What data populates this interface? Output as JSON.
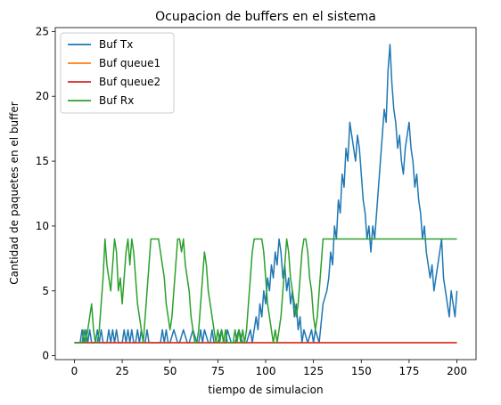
{
  "chart_data": {
    "type": "line",
    "title": "Ocupacion de buffers en el sistema",
    "xlabel": "tiempo de simulacion",
    "ylabel": "Cantidad de paquetes en el buffer",
    "xlim": [
      -10,
      210
    ],
    "ylim": [
      -0.3,
      25.3
    ],
    "xticks": [
      0,
      25,
      50,
      75,
      100,
      125,
      150,
      175,
      200
    ],
    "yticks": [
      0,
      5,
      10,
      15,
      20,
      25
    ],
    "grid": false,
    "legend_position": "top-left",
    "series": [
      {
        "name": "Buf Tx",
        "color": "#1f77b4",
        "x": [
          0,
          2,
          3,
          4,
          5,
          6,
          7,
          8,
          9,
          10,
          11,
          12,
          13,
          14,
          15,
          16,
          17,
          18,
          19,
          20,
          21,
          22,
          23,
          24,
          25,
          26,
          27,
          28,
          29,
          30,
          31,
          32,
          33,
          34,
          35,
          36,
          37,
          38,
          39,
          40,
          45,
          46,
          47,
          48,
          49,
          50,
          52,
          54,
          55,
          57,
          59,
          60,
          62,
          64,
          65,
          66,
          67,
          68,
          70,
          71,
          72,
          73,
          75,
          77,
          78,
          79,
          80,
          82,
          84,
          86,
          88,
          90,
          92,
          93,
          94,
          95,
          96,
          97,
          98,
          99,
          100,
          101,
          102,
          103,
          104,
          105,
          106,
          107,
          108,
          109,
          110,
          111,
          112,
          113,
          114,
          115,
          116,
          117,
          118,
          119,
          120,
          122,
          124,
          125,
          126,
          128,
          130,
          132,
          133,
          134,
          135,
          136,
          137,
          138,
          139,
          140,
          141,
          142,
          143,
          144,
          145,
          146,
          147,
          148,
          149,
          150,
          151,
          152,
          153,
          154,
          155,
          156,
          157,
          158,
          159,
          160,
          161,
          162,
          163,
          164,
          165,
          166,
          167,
          168,
          169,
          170,
          171,
          172,
          173,
          174,
          175,
          176,
          177,
          178,
          179,
          180,
          181,
          182,
          183,
          184,
          185,
          186,
          187,
          188,
          189,
          190,
          191,
          192,
          193,
          194,
          195,
          196,
          197,
          198,
          199,
          200
        ],
        "values": [
          1,
          1,
          1,
          2,
          1,
          2,
          1,
          2,
          1,
          1,
          1,
          2,
          1,
          2,
          1,
          1,
          1,
          2,
          1,
          2,
          1,
          2,
          1,
          1,
          1,
          2,
          1,
          2,
          1,
          2,
          1,
          1,
          2,
          1,
          2,
          1,
          1,
          2,
          1,
          1,
          1,
          2,
          1,
          2,
          1,
          1,
          2,
          1,
          1,
          2,
          1,
          1,
          2,
          1,
          1,
          2,
          1,
          2,
          1,
          1,
          2,
          1,
          1,
          2,
          1,
          1,
          2,
          1,
          1,
          2,
          1,
          1,
          2,
          1,
          2,
          3,
          2,
          4,
          3,
          5,
          4,
          6,
          5,
          7,
          6,
          8,
          7,
          9,
          8,
          6,
          7,
          5,
          6,
          4,
          5,
          3,
          4,
          2,
          3,
          1,
          2,
          1,
          2,
          1,
          2,
          1,
          4,
          5,
          6,
          8,
          7,
          10,
          9,
          12,
          11,
          14,
          13,
          16,
          15,
          18,
          17,
          16,
          15,
          17,
          16,
          14,
          12,
          11,
          9,
          10,
          8,
          10,
          9,
          11,
          13,
          15,
          17,
          19,
          18,
          22,
          24,
          21,
          19,
          18,
          16,
          17,
          15,
          14,
          16,
          17,
          18,
          16,
          15,
          13,
          14,
          12,
          11,
          9,
          10,
          8,
          7,
          6,
          7,
          5,
          6,
          7,
          8,
          9,
          6,
          5,
          4,
          3,
          5,
          4,
          3,
          5
        ],
        "note_resolution": "approx"
      },
      {
        "name": "Buf queue1",
        "color": "#ff7f0e",
        "x": [
          0,
          200
        ],
        "values": [
          1,
          1
        ]
      },
      {
        "name": "Buf queue2",
        "color": "#d62728",
        "x": [
          0,
          200
        ],
        "values": [
          1,
          1
        ]
      },
      {
        "name": "Buf Rx",
        "color": "#2ca02c",
        "x": [
          0,
          2,
          3,
          4,
          5,
          6,
          7,
          8,
          9,
          10,
          11,
          12,
          13,
          14,
          15,
          16,
          17,
          18,
          19,
          20,
          21,
          22,
          23,
          24,
          25,
          26,
          27,
          28,
          29,
          30,
          31,
          32,
          33,
          34,
          35,
          36,
          37,
          38,
          39,
          40,
          41,
          42,
          43,
          44,
          45,
          46,
          47,
          48,
          49,
          50,
          51,
          52,
          53,
          54,
          55,
          56,
          57,
          58,
          59,
          60,
          61,
          62,
          63,
          64,
          65,
          66,
          67,
          68,
          69,
          70,
          71,
          72,
          73,
          74,
          75,
          76,
          77,
          78,
          79,
          80,
          81,
          82,
          83,
          84,
          85,
          86,
          87,
          88,
          89,
          90,
          91,
          92,
          93,
          94,
          95,
          96,
          97,
          98,
          99,
          100,
          101,
          102,
          103,
          104,
          105,
          106,
          107,
          108,
          109,
          110,
          111,
          112,
          113,
          114,
          115,
          116,
          117,
          118,
          119,
          120,
          121,
          122,
          123,
          124,
          125,
          126,
          127,
          128,
          129,
          130,
          131,
          200
        ],
        "values": [
          1,
          1,
          1,
          1,
          2,
          1,
          2,
          3,
          4,
          2,
          1,
          1,
          2,
          4,
          6,
          9,
          7,
          6,
          5,
          7,
          9,
          8,
          5,
          6,
          4,
          6,
          8,
          9,
          7,
          9,
          8,
          6,
          4,
          3,
          2,
          1,
          3,
          5,
          7,
          9,
          9,
          9,
          9,
          9,
          8,
          7,
          6,
          4,
          3,
          2,
          3,
          5,
          7,
          9,
          9,
          8,
          9,
          7,
          6,
          5,
          3,
          2,
          1,
          1,
          2,
          4,
          6,
          8,
          7,
          5,
          4,
          3,
          2,
          1,
          2,
          1,
          2,
          1,
          2,
          1,
          1,
          1,
          1,
          2,
          1,
          2,
          1,
          2,
          1,
          2,
          4,
          6,
          8,
          9,
          9,
          9,
          9,
          9,
          8,
          6,
          4,
          3,
          2,
          1,
          2,
          1,
          2,
          3,
          5,
          7,
          9,
          8,
          6,
          5,
          4,
          3,
          4,
          6,
          8,
          9,
          9,
          8,
          6,
          5,
          3,
          2,
          3,
          5,
          7,
          9,
          9,
          9
        ]
      }
    ]
  }
}
